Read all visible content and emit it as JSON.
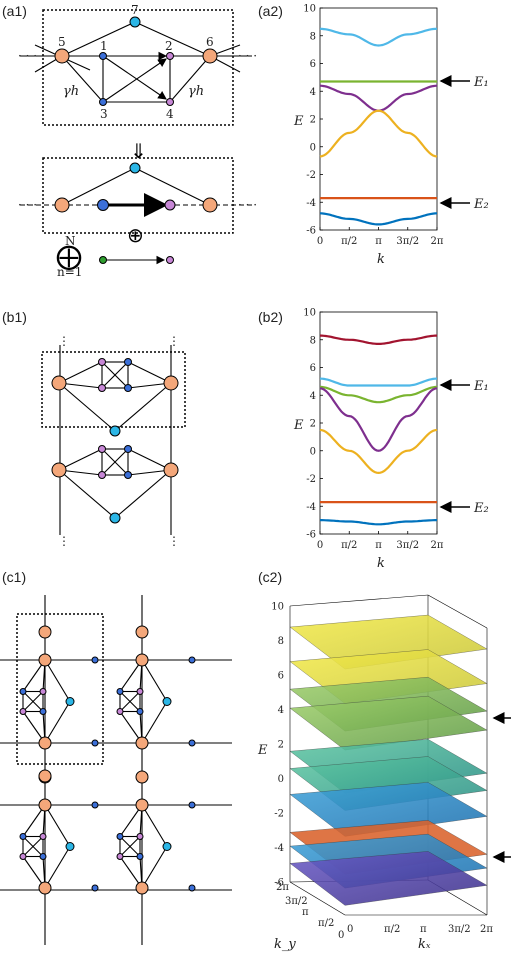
{
  "labels": {
    "a1": "(a1)",
    "a2": "(a2)",
    "b1": "(b1)",
    "b2": "(b2)",
    "c1": "(c1)",
    "c2": "(c2)"
  },
  "lattice_a1": {
    "site_labels": [
      "1",
      "2",
      "3",
      "4",
      "5",
      "6",
      "7"
    ],
    "hopping_label": "γh",
    "sum_upper": "N",
    "sum_lower": "n=1"
  },
  "energy_labels": {
    "E1": "E₁",
    "E2": "E₂"
  },
  "axes": {
    "ylabel": "E",
    "xlabel": "k",
    "kx_label": "kₓ",
    "ky_label": "k_y",
    "xticks": [
      "0",
      "π/2",
      "π",
      "3π/2",
      "2π"
    ],
    "yticks": [
      "-6",
      "-4",
      "-2",
      "0",
      "2",
      "4",
      "6",
      "8",
      "10"
    ]
  },
  "colors": {
    "orange_site": "#f4a77a",
    "blue_site": "#3b6fd8",
    "cyan_site": "#2bb6e6",
    "purple_site": "#c787d6",
    "green_site": "#2f9e2f"
  },
  "chart_data": [
    {
      "type": "line",
      "panel": "(a2)",
      "xlabel": "k",
      "ylabel": "E",
      "xlim": [
        0,
        6.283
      ],
      "ylim": [
        -6,
        10
      ],
      "series": [
        {
          "color": "#4fb8e8",
          "values": [
            [
              0,
              8.5
            ],
            [
              1.57,
              8.1
            ],
            [
              3.14,
              7.3
            ],
            [
              4.71,
              8.1
            ],
            [
              6.28,
              8.5
            ]
          ]
        },
        {
          "color": "#7ab430",
          "values": [
            [
              0,
              4.7
            ],
            [
              6.28,
              4.7
            ]
          ]
        },
        {
          "color": "#7e2f8e",
          "values": [
            [
              0,
              4.4
            ],
            [
              1.57,
              3.8
            ],
            [
              3.14,
              2.6
            ],
            [
              4.71,
              3.8
            ],
            [
              6.28,
              4.4
            ]
          ]
        },
        {
          "color": "#edb120",
          "values": [
            [
              0,
              -0.7
            ],
            [
              1.57,
              1.0
            ],
            [
              3.14,
              2.6
            ],
            [
              4.71,
              1.0
            ],
            [
              6.28,
              -0.7
            ]
          ]
        },
        {
          "color": "#d95319",
          "values": [
            [
              0,
              -3.7
            ],
            [
              6.28,
              -3.7
            ]
          ]
        },
        {
          "color": "#0072bd",
          "values": [
            [
              0,
              -4.8
            ],
            [
              1.57,
              -5.2
            ],
            [
              3.14,
              -5.6
            ],
            [
              4.71,
              -5.2
            ],
            [
              6.28,
              -4.8
            ]
          ]
        }
      ],
      "annotations": [
        "E₁",
        "E₂"
      ]
    },
    {
      "type": "line",
      "panel": "(b2)",
      "xlabel": "k",
      "ylabel": "E",
      "xlim": [
        0,
        6.283
      ],
      "ylim": [
        -6,
        10
      ],
      "series": [
        {
          "color": "#a2142f",
          "values": [
            [
              0,
              8.3
            ],
            [
              1.57,
              8.0
            ],
            [
              3.14,
              7.7
            ],
            [
              4.71,
              8.0
            ],
            [
              6.28,
              8.3
            ]
          ]
        },
        {
          "color": "#4fb8e8",
          "values": [
            [
              0,
              5.2
            ],
            [
              1.57,
              4.7
            ],
            [
              3.14,
              4.7
            ],
            [
              4.71,
              4.7
            ],
            [
              6.28,
              5.2
            ]
          ]
        },
        {
          "color": "#7ab430",
          "values": [
            [
              0,
              4.6
            ],
            [
              1.57,
              4.0
            ],
            [
              3.14,
              3.5
            ],
            [
              4.71,
              4.0
            ],
            [
              6.28,
              4.6
            ]
          ]
        },
        {
          "color": "#7e2f8e",
          "values": [
            [
              0,
              4.5
            ],
            [
              1.57,
              2.5
            ],
            [
              3.14,
              0.0
            ],
            [
              4.71,
              2.5
            ],
            [
              6.28,
              4.5
            ]
          ]
        },
        {
          "color": "#edb120",
          "values": [
            [
              0,
              1.5
            ],
            [
              1.57,
              0.0
            ],
            [
              3.14,
              -1.6
            ],
            [
              4.71,
              0.0
            ],
            [
              6.28,
              1.5
            ]
          ]
        },
        {
          "color": "#d95319",
          "values": [
            [
              0,
              -3.7
            ],
            [
              6.28,
              -3.7
            ]
          ]
        },
        {
          "color": "#0072bd",
          "values": [
            [
              0,
              -5.0
            ],
            [
              1.57,
              -5.1
            ],
            [
              3.14,
              -5.3
            ],
            [
              4.71,
              -5.1
            ],
            [
              6.28,
              -5.0
            ]
          ]
        }
      ],
      "annotations": [
        "E₁",
        "E₂"
      ]
    },
    {
      "type": "heatmap",
      "panel": "(c2)",
      "xlabel": "kₓ",
      "ylabel": "k_y",
      "zlabel": "E",
      "zlim": [
        -6,
        10
      ],
      "surfaces_approx_levels": [
        8.2,
        6.2,
        4.6,
        3.5,
        1.0,
        0.0,
        -1.5,
        -3.7,
        -4.5,
        -5.5
      ],
      "annotations": [
        "E₁",
        "E₂"
      ]
    }
  ]
}
